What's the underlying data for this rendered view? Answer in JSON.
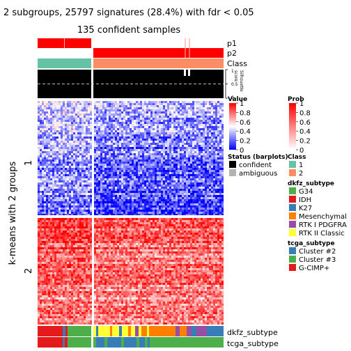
{
  "chart_data": {
    "type": "heatmap",
    "title": "2 subgroups, 25797 signatures (28.4%) with fdr < 0.05",
    "subtitle": "135 confident samples",
    "row_title": "k-means with 2 groups",
    "row_groups": [
      "1",
      "2"
    ],
    "top_tracks": [
      "p1",
      "p2",
      "Class"
    ],
    "silhouette": {
      "label": "Silhouette\nscore",
      "ticks": [
        "1",
        "0.5",
        "0"
      ],
      "dashed_at": 0.5
    },
    "bottom_tracks": [
      "dkfz_subtype",
      "tcga_subtype"
    ],
    "legends": {
      "value": {
        "title": "Value",
        "ticks": [
          "1",
          "0.8",
          "0.6",
          "0.4",
          "0.2",
          "0"
        ],
        "colors": [
          "#ff0000",
          "#ffffff",
          "#0000ff"
        ]
      },
      "prob": {
        "title": "Prob",
        "ticks": [
          "1",
          "0.8",
          "0.6",
          "0.4",
          "0.2",
          "0"
        ],
        "colors": [
          "#ff0000",
          "#ffffff"
        ]
      },
      "status": {
        "title": "Status (barplots)",
        "items": [
          {
            "label": "confident",
            "color": "#000000"
          },
          {
            "label": "ambiguous",
            "color": "#b3b3b3"
          }
        ]
      },
      "class": {
        "title": "Class",
        "items": [
          {
            "label": "1",
            "color": "#66c2a5"
          },
          {
            "label": "2",
            "color": "#fc8d62"
          }
        ]
      },
      "dkfz_subtype": {
        "title": "dkfz_subtype",
        "items": [
          {
            "label": "G34",
            "color": "#4daf4a"
          },
          {
            "label": "IDH",
            "color": "#e41a1c"
          },
          {
            "label": "K27",
            "color": "#377eb8"
          },
          {
            "label": "Mesenchymal",
            "color": "#ff7f00"
          },
          {
            "label": "RTK I PDGFRA",
            "color": "#984ea3"
          },
          {
            "label": "RTK II Classic",
            "color": "#ffff33"
          }
        ]
      },
      "tcga_subtype": {
        "title": "tcga_subtype",
        "items": [
          {
            "label": "Cluster #2",
            "color": "#377eb8"
          },
          {
            "label": "Cluster #3",
            "color": "#4daf4a"
          },
          {
            "label": "G-CIMP+",
            "color": "#e41a1c"
          }
        ]
      }
    }
  }
}
